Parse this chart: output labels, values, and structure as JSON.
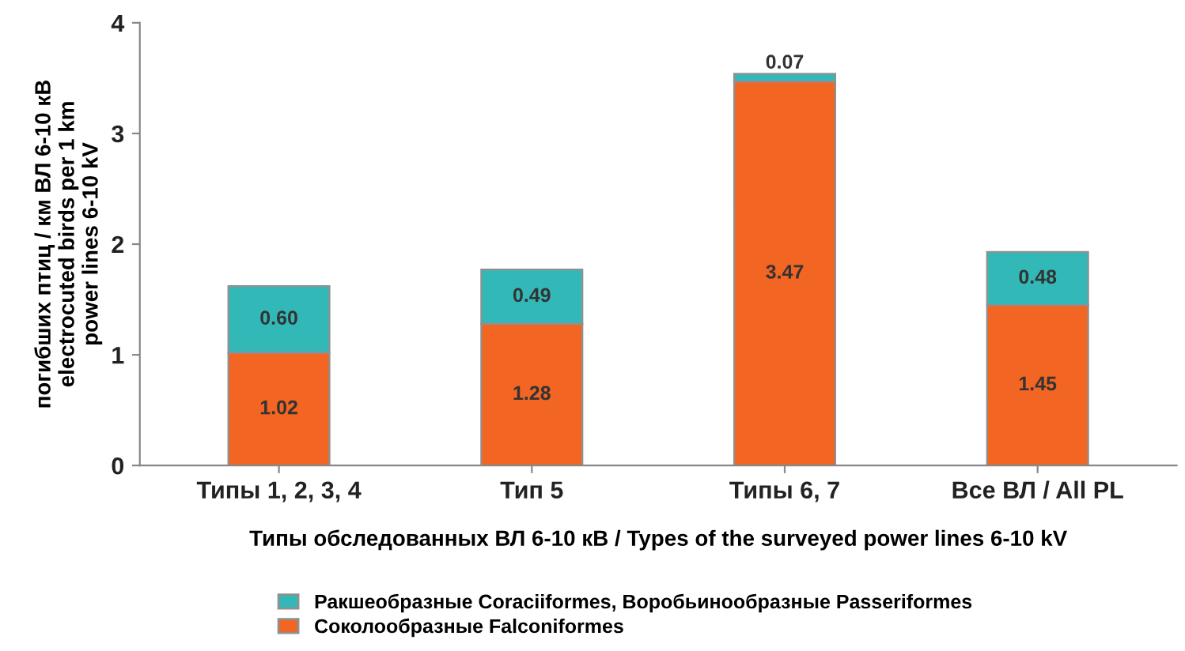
{
  "chart_data": {
    "type": "bar",
    "stacked": true,
    "xlabel": "Типы обследованных ВЛ 6-10 кВ / Types of the surveyed power lines 6-10 kV",
    "ylabel": "погибших птиц / км ВЛ 6-10 кВ\nelectrocuted birds per 1 km\npower lines 6-10 kV",
    "categories": [
      "Типы 1, 2, 3, 4",
      "Тип 5",
      "Типы 6, 7",
      "Все ВЛ / All PL"
    ],
    "series": [
      {
        "name": "Соколообразные Falconiformes",
        "color": "#f26522",
        "values": [
          1.02,
          1.28,
          3.47,
          1.45
        ],
        "value_labels": [
          "1.02",
          "1.28",
          "3.47",
          "1.45"
        ]
      },
      {
        "name": "Ракшеобразные Coraciiformes, Воробьинообразные Passeriformes",
        "color": "#33b8b8",
        "values": [
          0.6,
          0.49,
          0.07,
          0.48
        ],
        "value_labels": [
          "0.60",
          "0.49",
          "0.07",
          "0.48"
        ]
      }
    ],
    "ylim": [
      0,
      4
    ],
    "yticks": [
      0,
      1,
      2,
      3,
      4
    ],
    "grid": false,
    "legend": "bottom"
  }
}
